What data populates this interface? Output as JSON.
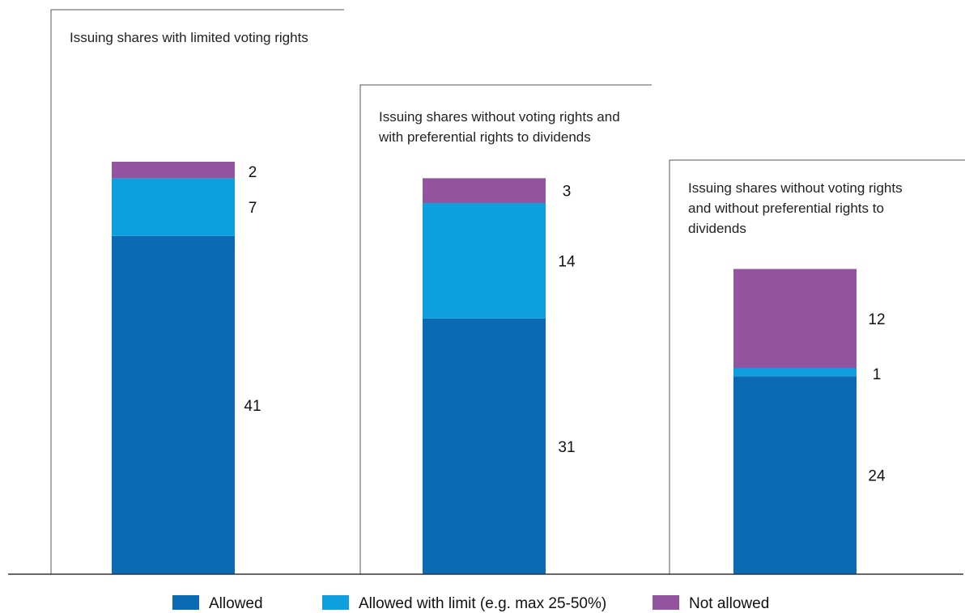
{
  "chart_data": {
    "type": "bar",
    "stacked": true,
    "panels": [
      {
        "title_lines": [
          "Issuing shares with limited voting rights"
        ],
        "values": {
          "allowed": 41,
          "allowed_with_limit": 7,
          "not_allowed": 2
        }
      },
      {
        "title_lines": [
          "Issuing shares without voting rights and",
          "with preferential rights to dividends"
        ],
        "values": {
          "allowed": 31,
          "allowed_with_limit": 14,
          "not_allowed": 3
        }
      },
      {
        "title_lines": [
          "Issuing shares without voting rights",
          "and without preferential rights to",
          "dividends"
        ],
        "values": {
          "allowed": 24,
          "allowed_with_limit": 1,
          "not_allowed": 12
        }
      }
    ],
    "series": [
      {
        "key": "allowed",
        "name": "Allowed",
        "color": "#0a6ab4"
      },
      {
        "key": "allowed_with_limit",
        "name": "Allowed with limit (e.g. max 25-50%)",
        "color": "#0ea0de"
      },
      {
        "key": "not_allowed",
        "name": "Not allowed",
        "color": "#93539e"
      }
    ],
    "legend_position": "bottom",
    "grid": false
  }
}
